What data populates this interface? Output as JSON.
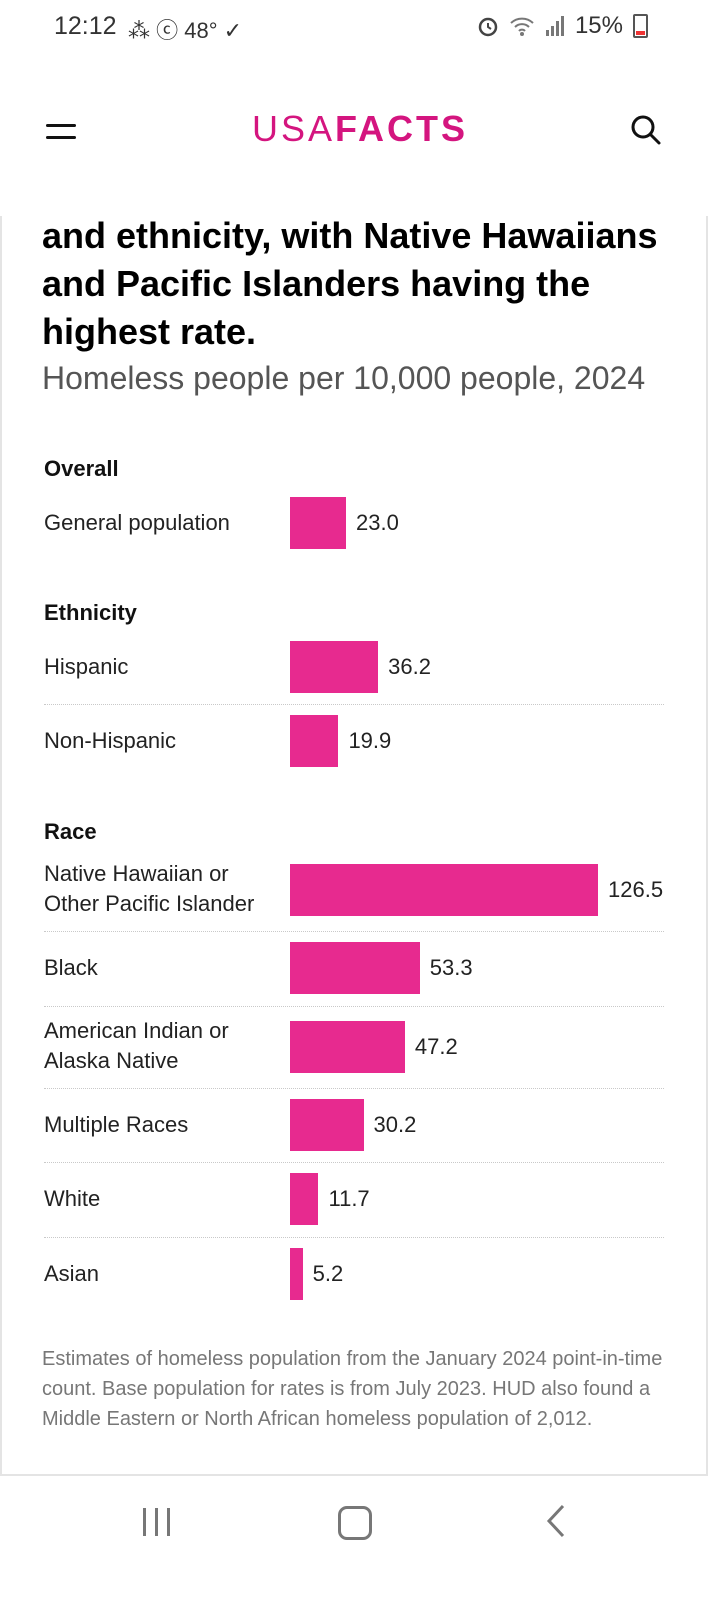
{
  "status": {
    "time": "12:12",
    "left_icons": "⁂ ⓒ 48° ✓",
    "battery": "15%"
  },
  "header": {
    "logo_light": "USA",
    "logo_bold": "FACTS"
  },
  "article": {
    "headline": "and ethnicity, with Native Hawaiians and Pacific Islanders having the highest rate.",
    "subtitle": "Homeless people per 10,000 people, 2024"
  },
  "chart_data": {
    "type": "bar",
    "orientation": "horizontal",
    "title": "Homeless people per 10,000 people, 2024",
    "groups": [
      {
        "name": "Overall",
        "categories": [
          "General population"
        ],
        "values": [
          23.0
        ],
        "labels": [
          "23.0"
        ]
      },
      {
        "name": "Ethnicity",
        "categories": [
          "Hispanic",
          "Non-Hispanic"
        ],
        "values": [
          36.2,
          19.9
        ],
        "labels": [
          "36.2",
          "19.9"
        ]
      },
      {
        "name": "Race",
        "categories": [
          "Native Hawaiian or Other Pacific Islander",
          "Black",
          "American Indian or Alaska Native",
          "Multiple Races",
          "White",
          "Asian"
        ],
        "values": [
          126.5,
          53.3,
          47.2,
          30.2,
          11.7,
          5.2
        ],
        "labels": [
          "126.5",
          "53.3",
          "47.2",
          "30.2",
          "11.7",
          "5.2"
        ]
      }
    ],
    "bar_color": "#e72a8f"
  },
  "footnote": "Estimates of homeless population from the January 2024 point-in-time count. Base population for rates is from July 2023. HUD also found a Middle Eastern or North African homeless population of 2,012.",
  "icons": [
    "menu-icon",
    "search-icon",
    "alarm-icon",
    "wifi-icon",
    "signal-icon",
    "battery-icon",
    "recents-icon",
    "home-icon",
    "back-icon"
  ]
}
